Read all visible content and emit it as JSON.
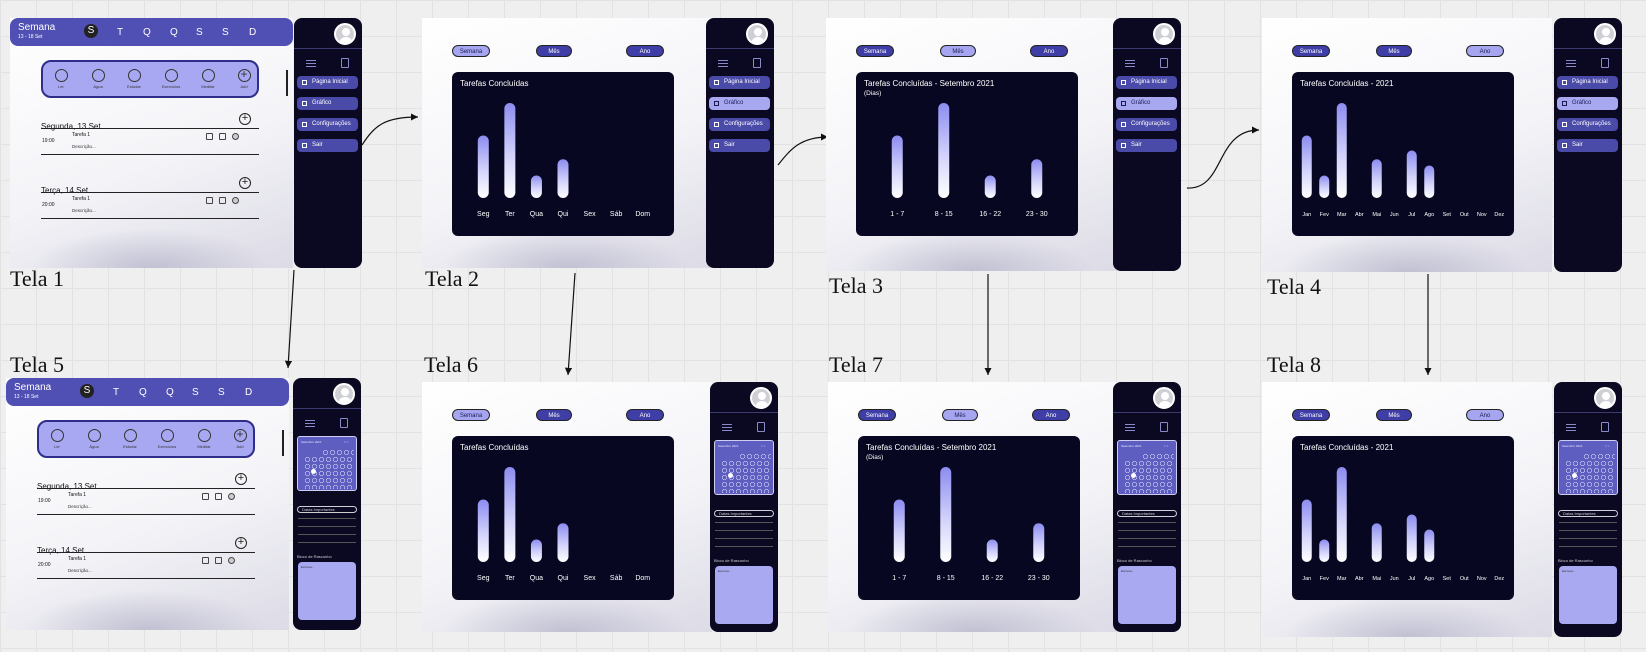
{
  "tela_labels": [
    "Tela 1",
    "Tela 2",
    "Tela 3",
    "Tela 4",
    "Tela 5",
    "Tela 6",
    "Tela 7",
    "Tela 8"
  ],
  "sidebar": {
    "items": [
      "Página Inicial",
      "Gráfico",
      "Configurações",
      "Sair"
    ],
    "calendar_title": "Setembro 2021",
    "calendar_nav": "< >",
    "datas_label": "Datas Importantes",
    "bloco_label": "Bloco de Rascunho",
    "bloco_placeholder": "Escreva..."
  },
  "week": {
    "title": "Semana",
    "range": "13 - 18 Set",
    "days": [
      "S",
      "T",
      "Q",
      "Q",
      "S",
      "S",
      "D"
    ]
  },
  "habits": [
    "Ler",
    "Água",
    "Estudar",
    "Exercícios",
    "Meditar",
    "Add"
  ],
  "schedule": [
    {
      "day": "Segunda, 13 Set",
      "time": "19:00",
      "task": "Tarefa 1",
      "desc": "Descrição..."
    },
    {
      "day": "Terça, 14 Set",
      "time": "20:00",
      "task": "Tarefa 1",
      "desc": "Descrição..."
    }
  ],
  "tabs": [
    "Semana",
    "Mês",
    "Ano"
  ],
  "chart_data": [
    {
      "type": "bar",
      "title": "Tarefas Concluídas",
      "subtitle": "",
      "categories": [
        "Seg",
        "Ter",
        "Qua",
        "Qui",
        "Sex",
        "Sáb",
        "Dom"
      ],
      "values": [
        5,
        7.6,
        1.8,
        3.1,
        0,
        0,
        0
      ],
      "ylim": [
        0,
        8
      ]
    },
    {
      "type": "bar",
      "title": "Tarefas Concluídas - Setembro 2021",
      "subtitle": "(Dias)",
      "categories": [
        "1 - 7",
        "8 - 15",
        "16 - 22",
        "23 - 30"
      ],
      "values": [
        5,
        7.6,
        1.8,
        3.1
      ],
      "ylim": [
        0,
        8
      ]
    },
    {
      "type": "bar",
      "title": "Tarefas Concluídas - 2021",
      "subtitle": "",
      "categories": [
        "Jan",
        "Fev",
        "Mar",
        "Abr",
        "Mai",
        "Jun",
        "Jul",
        "Ago",
        "Set",
        "Out",
        "Nov",
        "Dez"
      ],
      "values": [
        5,
        1.8,
        7.6,
        0,
        3.1,
        0,
        3.8,
        2.6,
        0,
        0,
        0,
        0
      ],
      "ylim": [
        0,
        8
      ]
    }
  ]
}
